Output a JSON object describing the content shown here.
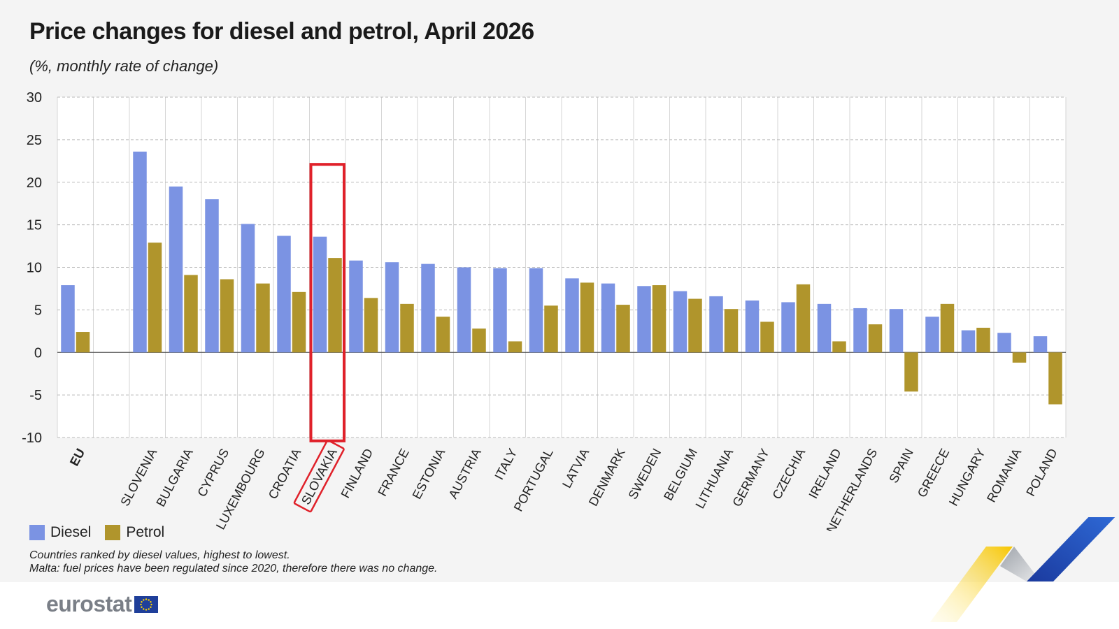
{
  "title": "Price changes for diesel and petrol, April 2026",
  "subtitle": "(%, monthly rate of change)",
  "legend": {
    "diesel": "Diesel",
    "petrol": "Petrol"
  },
  "notes": [
    "Countries ranked by diesel values, highest to lowest.",
    "Malta: fuel prices have been regulated since 2020, therefore there was no change."
  ],
  "logo": {
    "text": "eurostat"
  },
  "colors": {
    "diesel": "#7b93e3",
    "petrol": "#b0952c",
    "highlight": "#e0212a",
    "panel": "#f4f4f4"
  },
  "chart_data": {
    "type": "bar",
    "categories": [
      "EU",
      "",
      "SLOVENIA",
      "BULGARIA",
      "CYPRUS",
      "LUXEMBOURG",
      "CROATIA",
      "SLOVAKIA",
      "FINLAND",
      "FRANCE",
      "ESTONIA",
      "AUSTRIA",
      "ITALY",
      "PORTUGAL",
      "LATVIA",
      "DENMARK",
      "SWEDEN",
      "BELGIUM",
      "LITHUANIA",
      "GERMANY",
      "CZECHIA",
      "IRELAND",
      "NETHERLANDS",
      "SPAIN",
      "GREECE",
      "HUNGARY",
      "ROMANIA",
      "POLAND"
    ],
    "series": [
      {
        "name": "Diesel",
        "values": [
          7.9,
          null,
          23.6,
          19.5,
          18.0,
          15.1,
          13.7,
          13.6,
          10.8,
          10.6,
          10.4,
          10.0,
          9.9,
          9.9,
          8.7,
          8.1,
          7.8,
          7.2,
          6.6,
          6.1,
          5.9,
          5.7,
          5.2,
          5.1,
          4.2,
          2.6,
          2.3,
          1.9
        ]
      },
      {
        "name": "Petrol",
        "values": [
          2.4,
          null,
          12.9,
          9.1,
          8.6,
          8.1,
          7.1,
          11.1,
          6.4,
          5.7,
          4.2,
          2.8,
          1.3,
          5.5,
          8.2,
          5.6,
          7.9,
          6.3,
          5.1,
          3.6,
          8.0,
          1.3,
          3.3,
          -4.6,
          5.7,
          2.9,
          -1.2,
          -6.1
        ]
      }
    ],
    "yticks": [
      30,
      25,
      20,
      15,
      10,
      5,
      0,
      -5,
      -10
    ],
    "ylim": [
      -10,
      30
    ],
    "grid": true,
    "legend_position": "bottom-left",
    "highlight_category": "SLOVAKIA",
    "bold_category": "EU"
  }
}
